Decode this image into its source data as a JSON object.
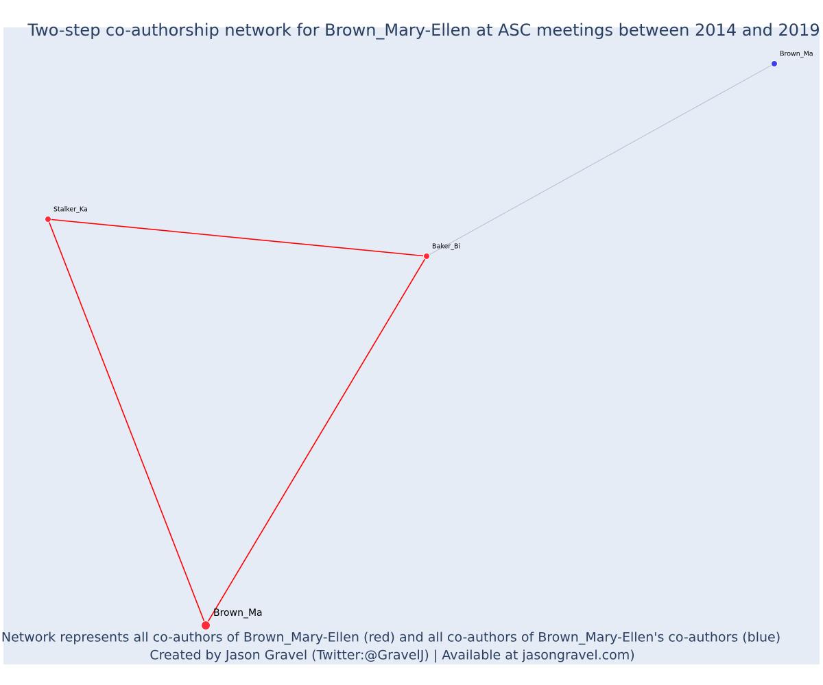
{
  "title": "Two-step co-authorship network for Brown_Mary-Ellen at ASC meetings between 2014 and 2019",
  "nodes": [
    {
      "label": "Brown_Ma",
      "color": "#ff2a3a"
    },
    {
      "label": "Stalker_Ka",
      "color": "#ff2a3a"
    },
    {
      "label": "Baker_Bi",
      "color": "#ff2a3a"
    },
    {
      "label": "Brown_Ma",
      "color": "#3a3ff0"
    }
  ],
  "edges": [
    {
      "from": 0,
      "to": 1,
      "color": "#ff0000"
    },
    {
      "from": 0,
      "to": 2,
      "color": "#ff0000"
    },
    {
      "from": 1,
      "to": 2,
      "color": "#ff0000"
    },
    {
      "from": 2,
      "to": 3,
      "color": "#b8bccc"
    }
  ],
  "caption": [
    "Network represents all co-authors of Brown_Mary-Ellen (red) and all co-authors of Brown_Mary-Ellen's co-authors (blue)",
    "Created by Jason Gravel (Twitter:@GravelJ) | Available at jasongravel.com)"
  ]
}
